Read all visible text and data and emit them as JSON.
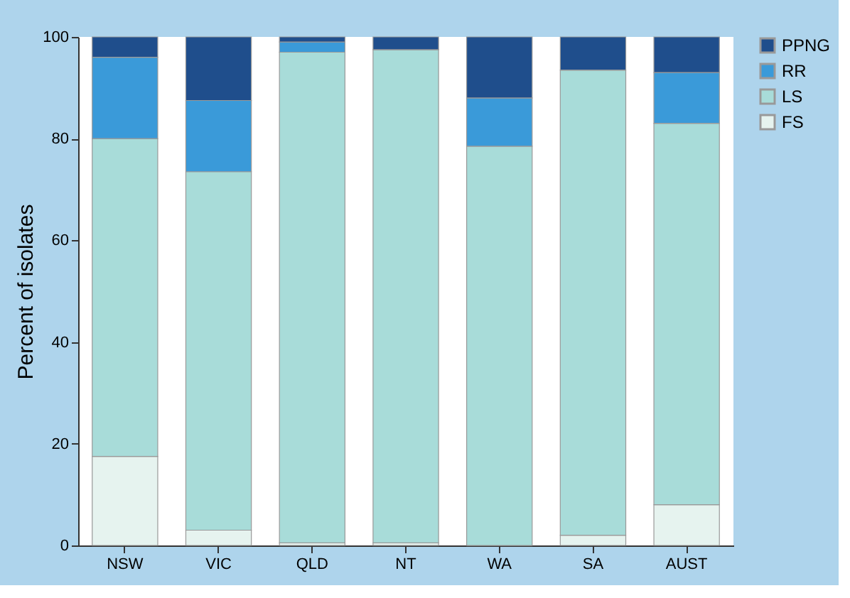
{
  "chart_data": {
    "type": "bar",
    "stacked": true,
    "ylabel": "Percent of isolates",
    "categories": [
      "NSW",
      "VIC",
      "QLD",
      "NT",
      "WA",
      "SA",
      "AUST"
    ],
    "series": [
      {
        "name": "FS",
        "color": "#e6f3ef",
        "values": [
          17.5,
          3,
          0.5,
          0.5,
          0,
          2,
          8
        ]
      },
      {
        "name": "LS",
        "color": "#a8dcd9",
        "values": [
          62.5,
          70.5,
          96.5,
          97,
          78.5,
          91.5,
          75
        ]
      },
      {
        "name": "RR",
        "color": "#3a9ad9",
        "values": [
          16,
          14,
          2,
          0,
          9.5,
          0,
          10
        ]
      },
      {
        "name": "PPNG",
        "color": "#1f4e8c",
        "values": [
          4,
          12.5,
          1,
          2.5,
          12,
          6.5,
          7
        ]
      }
    ],
    "ylim": [
      0,
      100
    ],
    "yticks": [
      0,
      20,
      40,
      60,
      80,
      100
    ],
    "legend": "top right"
  }
}
